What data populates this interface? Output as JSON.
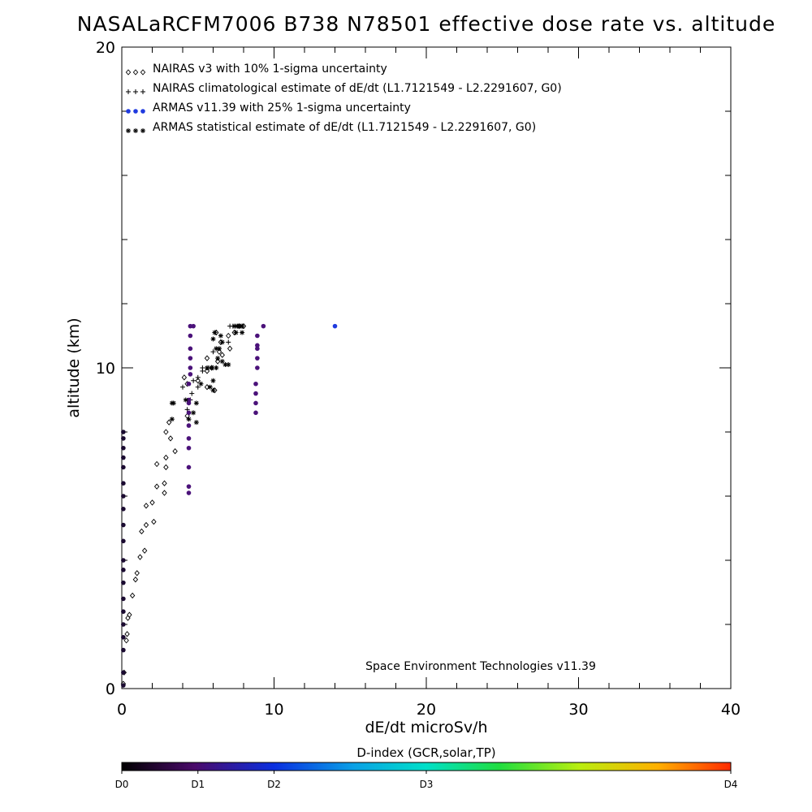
{
  "chart_data": {
    "type": "scatter",
    "title": "NASALaRCFM7006  B738 N78501 effective dose rate vs. altitude",
    "xlabel": "dE/dt microSv/h",
    "ylabel": "altitude (km)",
    "xlim": [
      0,
      40
    ],
    "ylim": [
      0,
      20
    ],
    "x_tick_labels": [
      "0",
      "10",
      "20",
      "30",
      "40"
    ],
    "y_tick_labels": [
      "0",
      "10",
      "20"
    ],
    "grid": false,
    "legend_position": "top-left",
    "annotation": "Space Environment Technologies v11.39",
    "colorbar": {
      "title": "D-index (GCR,solar,TP)",
      "tick_labels": [
        "D0",
        "D1",
        "D2",
        "D3",
        "D4"
      ],
      "tick_values": [
        0,
        0.5,
        1,
        2,
        4
      ],
      "range": [
        0,
        4
      ]
    },
    "series": [
      {
        "name": "NAIRAS v3 with 10% 1-sigma uncertainty",
        "marker": "diamond",
        "color": "#000000",
        "points": [
          [
            0.1,
            0.15
          ],
          [
            0.15,
            0.5
          ],
          [
            0.3,
            1.5
          ],
          [
            0.35,
            1.7
          ],
          [
            0.4,
            2.2
          ],
          [
            0.5,
            2.3
          ],
          [
            0.7,
            2.9
          ],
          [
            0.9,
            3.4
          ],
          [
            1.0,
            3.6
          ],
          [
            1.2,
            4.1
          ],
          [
            1.5,
            4.3
          ],
          [
            1.3,
            4.9
          ],
          [
            1.6,
            5.1
          ],
          [
            1.6,
            5.7
          ],
          [
            2.0,
            5.8
          ],
          [
            2.1,
            5.2
          ],
          [
            2.3,
            6.3
          ],
          [
            2.8,
            6.1
          ],
          [
            2.8,
            6.4
          ],
          [
            2.3,
            7.0
          ],
          [
            2.9,
            6.9
          ],
          [
            2.9,
            7.2
          ],
          [
            3.5,
            7.4
          ],
          [
            3.2,
            7.8
          ],
          [
            2.9,
            8.0
          ],
          [
            3.1,
            8.3
          ],
          [
            4.3,
            9.5
          ],
          [
            4.1,
            9.7
          ],
          [
            5.0,
            9.6
          ],
          [
            5.6,
            9.4
          ],
          [
            6.1,
            9.3
          ],
          [
            5.6,
            9.9
          ],
          [
            5.9,
            10.0
          ],
          [
            6.3,
            10.2
          ],
          [
            6.6,
            10.4
          ],
          [
            7.1,
            10.6
          ],
          [
            5.6,
            10.3
          ],
          [
            6.4,
            10.5
          ],
          [
            6.5,
            10.8
          ],
          [
            7.0,
            11.0
          ],
          [
            7.4,
            11.1
          ],
          [
            7.7,
            11.3
          ],
          [
            6.2,
            11.1
          ],
          [
            8.0,
            11.3
          ],
          [
            4.3,
            8.5
          ]
        ]
      },
      {
        "name": "NAIRAS climatological estimate of dE/dt (L1.7121549 - L2.2291607, G0)",
        "marker": "plus",
        "color": "#000000",
        "points": [
          [
            4.0,
            9.4
          ],
          [
            4.6,
            9.2
          ],
          [
            4.7,
            9.6
          ],
          [
            5.0,
            9.7
          ],
          [
            5.0,
            9.4
          ],
          [
            4.3,
            8.7
          ],
          [
            4.5,
            9.0
          ],
          [
            5.3,
            9.9
          ],
          [
            5.3,
            10.0
          ],
          [
            5.7,
            10.0
          ],
          [
            6.0,
            10.0
          ],
          [
            6.2,
            10.0
          ],
          [
            6.0,
            10.5
          ],
          [
            7.0,
            10.8
          ],
          [
            7.1,
            11.3
          ],
          [
            7.3,
            11.3
          ],
          [
            7.5,
            11.3
          ],
          [
            7.7,
            11.3
          ],
          [
            7.9,
            11.3
          ]
        ]
      },
      {
        "name": "ARMAS v11.39 with 25% 1-sigma uncertainty",
        "marker": "dot",
        "color": "#1f3adf",
        "points": [
          [
            0.1,
            0.1
          ],
          [
            0.1,
            0.5
          ],
          [
            0.1,
            1.2
          ],
          [
            0.1,
            1.6
          ],
          [
            0.1,
            2.0
          ],
          [
            0.1,
            2.4
          ],
          [
            0.1,
            2.8
          ],
          [
            0.1,
            3.3
          ],
          [
            0.1,
            3.7
          ],
          [
            0.1,
            4.0
          ],
          [
            0.1,
            4.6
          ],
          [
            0.1,
            5.1
          ],
          [
            0.1,
            5.6
          ],
          [
            0.1,
            6.0
          ],
          [
            0.1,
            6.4
          ],
          [
            0.1,
            6.9
          ],
          [
            0.1,
            7.2
          ],
          [
            0.1,
            7.5
          ],
          [
            0.1,
            7.8
          ],
          [
            0.1,
            8.0
          ],
          [
            4.4,
            6.1
          ],
          [
            4.4,
            6.3
          ],
          [
            4.4,
            6.9
          ],
          [
            4.4,
            7.5
          ],
          [
            4.4,
            7.8
          ],
          [
            4.4,
            8.2
          ],
          [
            4.4,
            8.6
          ],
          [
            4.4,
            8.9
          ],
          [
            4.4,
            9.0
          ],
          [
            4.4,
            9.5
          ],
          [
            4.5,
            9.8
          ],
          [
            4.5,
            10.0
          ],
          [
            4.5,
            10.3
          ],
          [
            4.5,
            10.6
          ],
          [
            4.5,
            11.0
          ],
          [
            4.5,
            11.3
          ],
          [
            4.7,
            11.3
          ],
          [
            8.8,
            8.6
          ],
          [
            8.8,
            8.9
          ],
          [
            8.8,
            9.2
          ],
          [
            8.8,
            9.5
          ],
          [
            8.9,
            10.0
          ],
          [
            8.9,
            10.3
          ],
          [
            8.9,
            10.6
          ],
          [
            8.9,
            10.7
          ],
          [
            8.9,
            11.0
          ],
          [
            9.3,
            11.3
          ],
          [
            14.0,
            11.3
          ]
        ]
      },
      {
        "name": "ARMAS statistical estimate of dE/dt (L1.7121549 - L2.2291607, G0)",
        "marker": "asterisk",
        "color": "#000000",
        "points": [
          [
            3.3,
            8.4
          ],
          [
            3.3,
            8.9
          ],
          [
            3.4,
            8.9
          ],
          [
            4.2,
            9.0
          ],
          [
            4.4,
            8.4
          ],
          [
            4.7,
            8.6
          ],
          [
            4.9,
            8.3
          ],
          [
            4.9,
            8.9
          ],
          [
            5.2,
            9.5
          ],
          [
            6.0,
            9.6
          ],
          [
            5.8,
            9.4
          ],
          [
            6.0,
            9.3
          ],
          [
            5.6,
            10.0
          ],
          [
            5.9,
            10.0
          ],
          [
            6.2,
            10.0
          ],
          [
            6.3,
            10.3
          ],
          [
            6.6,
            10.2
          ],
          [
            6.8,
            10.1
          ],
          [
            7.0,
            10.1
          ],
          [
            6.2,
            10.6
          ],
          [
            6.4,
            10.6
          ],
          [
            6.6,
            10.8
          ],
          [
            6.0,
            10.9
          ],
          [
            6.5,
            11.0
          ],
          [
            6.1,
            11.1
          ],
          [
            7.5,
            11.1
          ],
          [
            7.9,
            11.3
          ],
          [
            7.4,
            11.3
          ],
          [
            7.6,
            11.3
          ],
          [
            7.8,
            11.3
          ],
          [
            7.9,
            11.1
          ]
        ]
      }
    ]
  }
}
